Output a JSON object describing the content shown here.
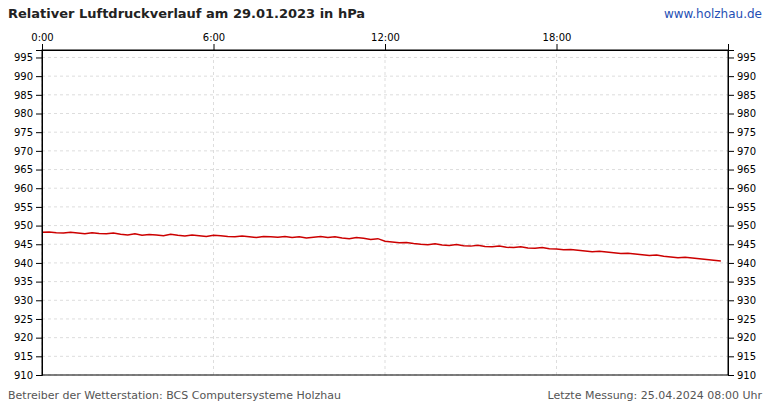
{
  "chart_data": {
    "type": "line",
    "title": "Relativer Luftdruckverlauf am 29.01.2023 in hPa",
    "annotations": [
      "www.holzhau.de",
      "Betreiber der Wetterstation: BCS Computersysteme Holzhau",
      "Letzte Messung: 25.04.2024 08:00 Uhr"
    ],
    "x": [
      0.0,
      0.25,
      0.5,
      0.75,
      1.0,
      1.25,
      1.5,
      1.75,
      2.0,
      2.25,
      2.5,
      2.75,
      3.0,
      3.25,
      3.5,
      3.75,
      4.0,
      4.25,
      4.5,
      4.75,
      5.0,
      5.25,
      5.5,
      5.75,
      6.0,
      6.25,
      6.5,
      6.75,
      7.0,
      7.25,
      7.5,
      7.75,
      8.0,
      8.25,
      8.5,
      8.75,
      9.0,
      9.25,
      9.5,
      9.75,
      10.0,
      10.25,
      10.5,
      10.75,
      11.0,
      11.25,
      11.5,
      11.75,
      12.0,
      12.25,
      12.5,
      12.75,
      13.0,
      13.25,
      13.5,
      13.75,
      14.0,
      14.25,
      14.5,
      14.75,
      15.0,
      15.25,
      15.5,
      15.75,
      16.0,
      16.25,
      16.5,
      16.75,
      17.0,
      17.25,
      17.5,
      17.75,
      18.0,
      18.25,
      18.5,
      18.75,
      19.0,
      19.25,
      19.5,
      19.75,
      20.0,
      20.25,
      20.5,
      20.75,
      21.0,
      21.25,
      21.5,
      21.75,
      22.0,
      22.25,
      22.5,
      22.75,
      23.0,
      23.25,
      23.5,
      23.75
    ],
    "values": [
      948.2,
      948.3,
      948.1,
      948.0,
      948.2,
      948.0,
      947.8,
      948.1,
      947.9,
      947.8,
      948.0,
      947.7,
      947.5,
      947.8,
      947.4,
      947.6,
      947.5,
      947.3,
      947.7,
      947.4,
      947.2,
      947.5,
      947.3,
      947.1,
      947.4,
      947.3,
      947.1,
      947.0,
      947.2,
      947.0,
      946.8,
      947.1,
      947.0,
      946.9,
      947.1,
      946.8,
      947.0,
      946.7,
      946.9,
      947.1,
      946.8,
      947.0,
      946.7,
      946.5,
      946.8,
      946.6,
      946.3,
      946.5,
      945.8,
      945.6,
      945.4,
      945.5,
      945.2,
      945.0,
      944.9,
      945.1,
      944.8,
      944.7,
      944.9,
      944.6,
      944.5,
      944.7,
      944.4,
      944.3,
      944.5,
      944.2,
      944.1,
      944.3,
      944.0,
      943.9,
      944.1,
      943.8,
      943.7,
      943.5,
      943.6,
      943.4,
      943.2,
      943.0,
      943.1,
      942.9,
      942.7,
      942.5,
      942.6,
      942.4,
      942.2,
      942.0,
      942.1,
      941.8,
      941.6,
      941.4,
      941.5,
      941.3,
      941.1,
      940.9,
      940.7,
      940.5
    ],
    "color": "#cc0000",
    "xlim": [
      0,
      24
    ],
    "xticks": [
      {
        "value": 0,
        "label": "0:00"
      },
      {
        "value": 6,
        "label": "6:00"
      },
      {
        "value": 12,
        "label": "12:00"
      },
      {
        "value": 18,
        "label": "18:00"
      }
    ],
    "ylim": [
      910,
      997
    ],
    "yticks": [
      910,
      915,
      920,
      925,
      930,
      935,
      940,
      945,
      950,
      955,
      960,
      965,
      970,
      975,
      980,
      985,
      990,
      995
    ],
    "grid": true
  }
}
